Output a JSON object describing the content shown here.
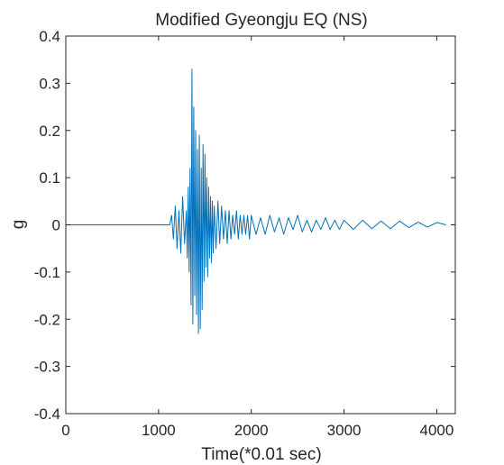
{
  "chart_data": {
    "type": "line",
    "title": "Modified Gyeongju EQ (NS)",
    "xlabel": "Time(*0.01 sec)",
    "ylabel": "g",
    "xlim": [
      0,
      4200
    ],
    "ylim": [
      -0.4,
      0.4
    ],
    "xticks": [
      "0",
      "1000",
      "2000",
      "3000",
      "4000"
    ],
    "xtick_values": [
      0,
      1000,
      2000,
      3000,
      4000
    ],
    "yticks": [
      "0.4",
      "0.3",
      "0.2",
      "0.1",
      "0",
      "-0.1",
      "-0.2",
      "-0.3",
      "-0.4"
    ],
    "ytick_values": [
      0.4,
      0.3,
      0.2,
      0.1,
      0,
      -0.1,
      -0.2,
      -0.3,
      -0.4
    ],
    "grid": false,
    "box": true,
    "line_color": "#0072BD",
    "series": [
      {
        "x": [
          0,
          1000,
          1120,
          1140,
          1160,
          1180,
          1200,
          1220,
          1240,
          1260,
          1280,
          1300,
          1310,
          1320,
          1330,
          1340,
          1350,
          1360,
          1370,
          1380,
          1390,
          1400,
          1410,
          1420,
          1430,
          1440,
          1450,
          1460,
          1470,
          1480,
          1490,
          1500,
          1510,
          1520,
          1530,
          1540,
          1550,
          1560,
          1570,
          1580,
          1590,
          1600,
          1620,
          1640,
          1660,
          1680,
          1700,
          1720,
          1740,
          1760,
          1780,
          1800,
          1820,
          1840,
          1860,
          1880,
          1900,
          1920,
          1940,
          1960,
          1980,
          2000,
          2050,
          2100,
          2150,
          2200,
          2250,
          2300,
          2350,
          2400,
          2450,
          2500,
          2550,
          2600,
          2650,
          2700,
          2750,
          2800,
          2850,
          2900,
          2950,
          3000,
          3100,
          3200,
          3300,
          3400,
          3500,
          3600,
          3700,
          3800,
          3900,
          4000,
          4100
        ],
        "values": [
          0,
          0,
          0,
          0.02,
          -0.03,
          0.04,
          -0.05,
          0.03,
          -0.06,
          0.06,
          -0.04,
          0.03,
          -0.07,
          0.08,
          -0.1,
          0.12,
          -0.17,
          0.33,
          -0.21,
          0.25,
          -0.15,
          0.2,
          -0.19,
          0.16,
          -0.23,
          0.19,
          -0.22,
          0.12,
          -0.18,
          0.17,
          -0.12,
          0.15,
          -0.09,
          0.1,
          -0.11,
          0.08,
          -0.07,
          0.06,
          -0.08,
          0.05,
          -0.06,
          0.04,
          -0.05,
          0.05,
          -0.04,
          0.04,
          -0.03,
          0.03,
          -0.04,
          0.03,
          -0.03,
          0.02,
          -0.02,
          0.03,
          -0.03,
          0.02,
          -0.02,
          0.02,
          -0.02,
          0.02,
          -0.03,
          0.02,
          -0.02,
          0.015,
          -0.02,
          0.02,
          -0.015,
          0.015,
          -0.02,
          0.015,
          -0.01,
          0.02,
          -0.015,
          0.01,
          -0.015,
          0.01,
          -0.01,
          0.015,
          -0.01,
          0.01,
          -0.01,
          0.01,
          -0.01,
          0.01,
          -0.008,
          0.008,
          -0.008,
          0.008,
          -0.006,
          0.006,
          -0.005,
          0.005,
          0
        ]
      }
    ]
  }
}
